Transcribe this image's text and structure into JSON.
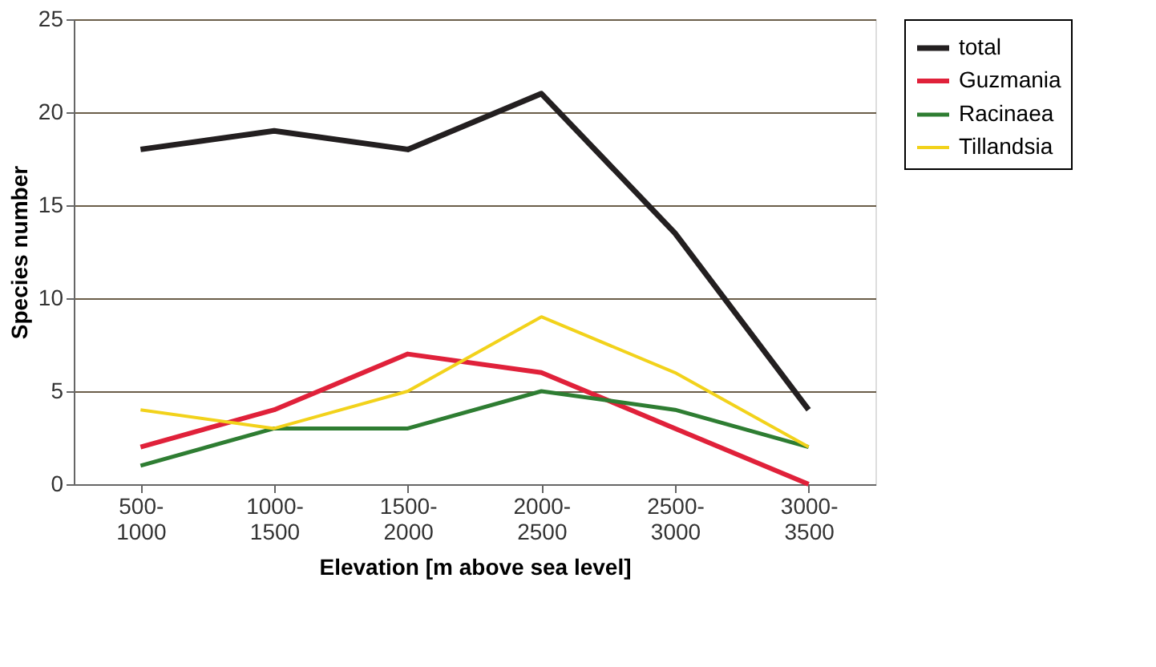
{
  "chart_data": {
    "type": "line",
    "xlabel": "Elevation [m above sea level]",
    "ylabel": "Species number",
    "categories": [
      "500-\n1000",
      "1000-\n1500",
      "1500-\n2000",
      "2000-\n2500",
      "2500-\n3000",
      "3000-\n3500"
    ],
    "series": [
      {
        "name": "total",
        "color": "#231f20",
        "values": [
          18,
          19,
          18,
          21,
          13.5,
          4
        ]
      },
      {
        "name": "Guzmania",
        "color": "#e0213a",
        "values": [
          2,
          4,
          7,
          6,
          3,
          0
        ]
      },
      {
        "name": "Racinaea",
        "color": "#2e7d32",
        "values": [
          1,
          3,
          3,
          5,
          4,
          2
        ]
      },
      {
        "name": "Tillandsia",
        "color": "#f2d21b",
        "values": [
          4,
          3,
          5,
          9,
          6,
          2
        ]
      }
    ],
    "ylim": [
      0,
      25
    ],
    "yticks": [
      0,
      5,
      10,
      15,
      20,
      25
    ],
    "grid": "y",
    "legend": "right",
    "marker": "none",
    "line_style": "solid"
  }
}
